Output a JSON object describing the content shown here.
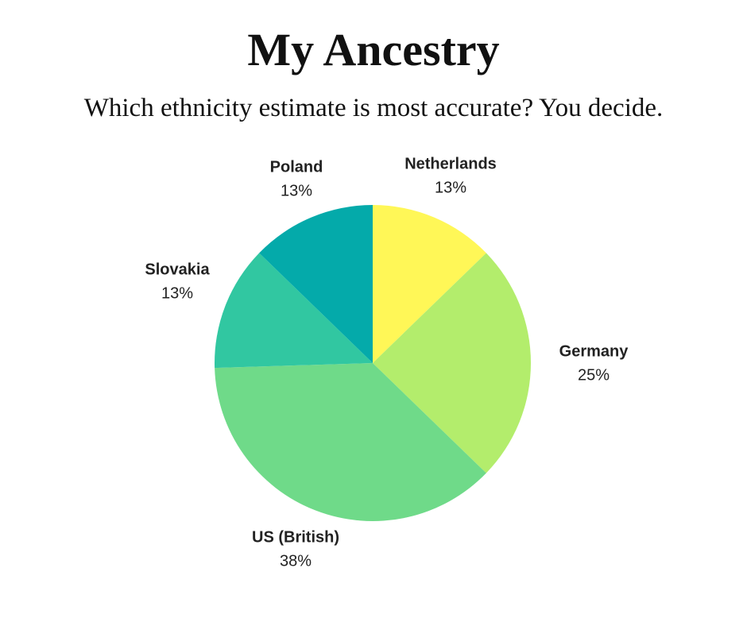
{
  "chart_data": {
    "type": "pie",
    "title": "My Ancestry",
    "subtitle": "Which ethnicity estimate is most accurate?  You decide.",
    "categories": [
      "Netherlands",
      "Germany",
      "US (British)",
      "Slovakia",
      "Poland"
    ],
    "values": [
      13,
      25,
      38,
      13,
      13
    ],
    "value_labels": [
      "13%",
      "25%",
      "38%",
      "13%",
      "13%"
    ],
    "colors": [
      "#fff757",
      "#b3ed6c",
      "#6fda89",
      "#31c7a1",
      "#04aaaa"
    ]
  }
}
